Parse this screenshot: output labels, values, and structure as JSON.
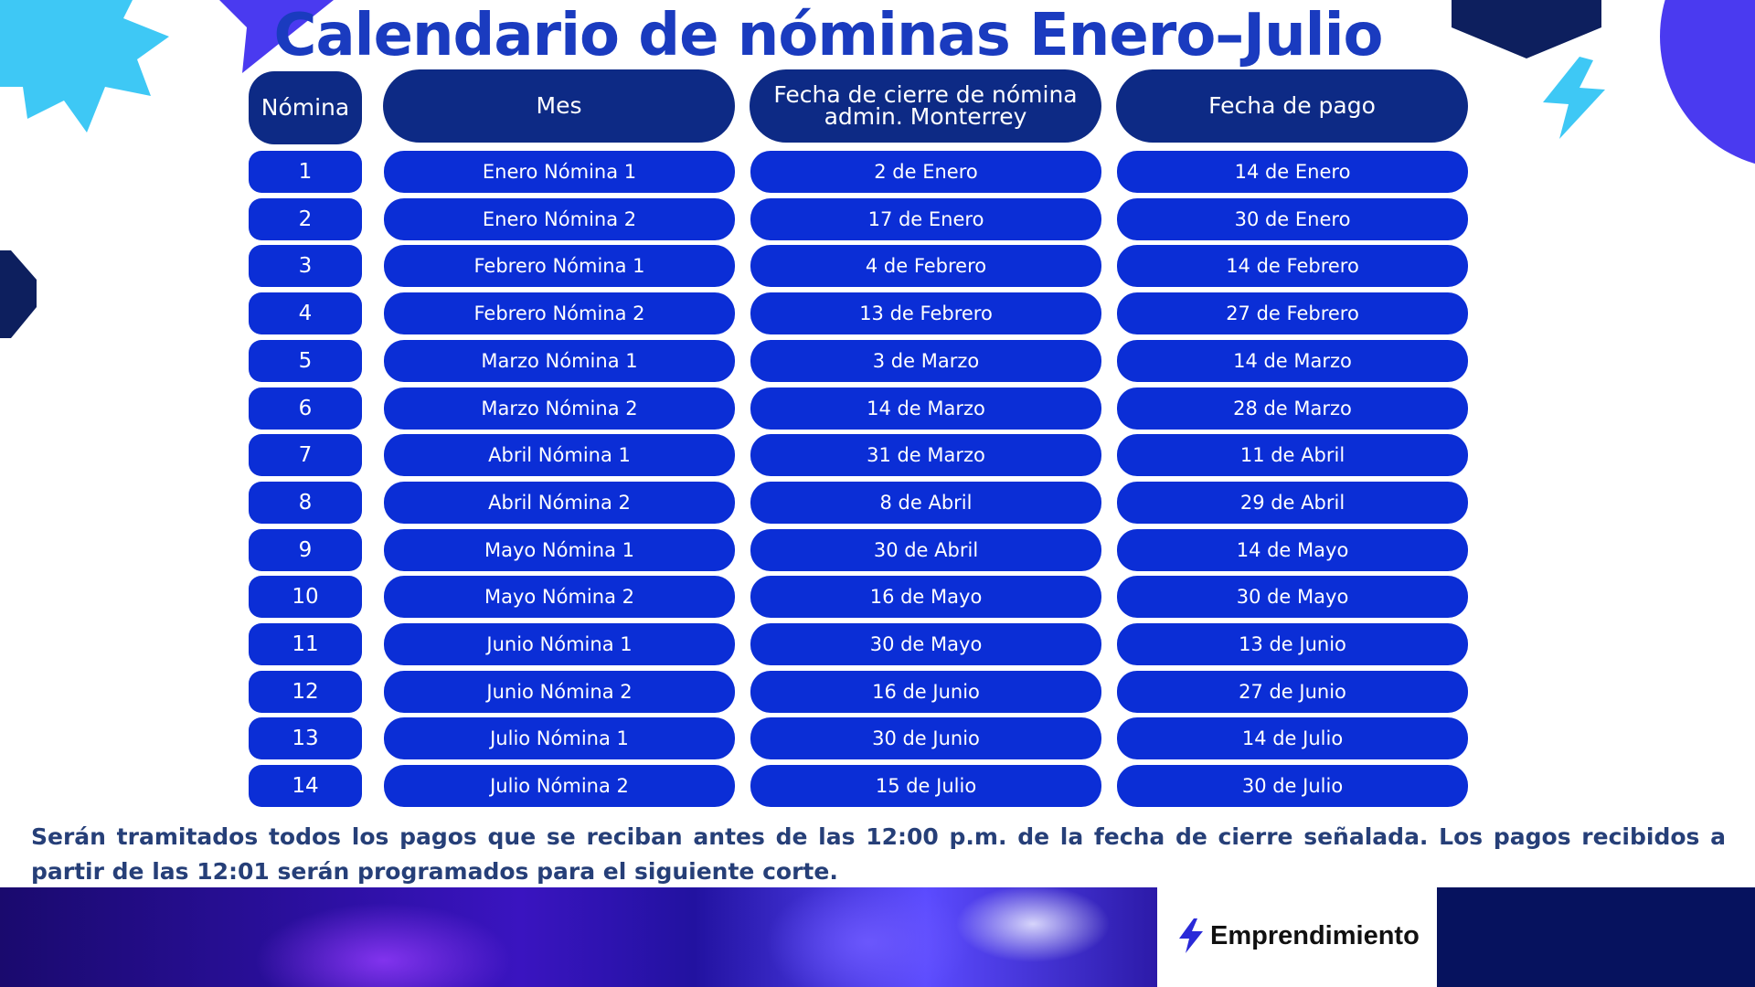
{
  "title": "Calendario de nóminas Enero–Julio",
  "headers": {
    "nomina": "Nómina",
    "mes": "Mes",
    "cierre": "Fecha de cierre de nómina\nadmin. Monterrey",
    "pago": "Fecha de pago"
  },
  "rows": [
    {
      "num": "1",
      "mes": "Enero Nómina 1",
      "cierre": "2 de Enero",
      "pago": "14 de Enero"
    },
    {
      "num": "2",
      "mes": "Enero Nómina 2",
      "cierre": "17 de Enero",
      "pago": "30 de Enero"
    },
    {
      "num": "3",
      "mes": "Febrero Nómina 1",
      "cierre": "4 de Febrero",
      "pago": "14 de Febrero"
    },
    {
      "num": "4",
      "mes": "Febrero  Nómina 2",
      "cierre": "13 de Febrero",
      "pago": "27 de Febrero"
    },
    {
      "num": "5",
      "mes": "Marzo Nómina 1",
      "cierre": "3 de Marzo",
      "pago": "14 de Marzo"
    },
    {
      "num": "6",
      "mes": "Marzo Nómina 2",
      "cierre": "14 de Marzo",
      "pago": "28 de Marzo"
    },
    {
      "num": "7",
      "mes": "Abril Nómina 1",
      "cierre": "31 de Marzo",
      "pago": "11 de Abril"
    },
    {
      "num": "8",
      "mes": "Abril Nómina 2",
      "cierre": "8 de Abril",
      "pago": "29 de Abril"
    },
    {
      "num": "9",
      "mes": "Mayo Nómina 1",
      "cierre": "30  de Abril",
      "pago": "14 de Mayo"
    },
    {
      "num": "10",
      "mes": "Mayo Nómina 2",
      "cierre": "16 de Mayo",
      "pago": "30 de Mayo"
    },
    {
      "num": "11",
      "mes": "Junio  Nómina 1",
      "cierre": "30 de Mayo",
      "pago": "13 de Junio"
    },
    {
      "num": "12",
      "mes": "Junio  Nómina 2",
      "cierre": "16 de Junio",
      "pago": "27 de Junio"
    },
    {
      "num": "13",
      "mes": "Julio  Nómina 1",
      "cierre": "30 de Junio",
      "pago": "14 de Julio"
    },
    {
      "num": "14",
      "mes": "Julio  Nómina 2",
      "cierre": "15 de Julio",
      "pago": "30 de Julio"
    }
  ],
  "note": "Serán tramitados todos los pagos que se reciban antes de las 12:00 p.m. de la fecha de cierre señalada. Los pagos recibidos a partir de las 12:01 serán programados para el siguiente corte.",
  "brand": {
    "name": "Emprendimiento",
    "icon": "lightning-bolt-icon"
  },
  "colors": {
    "title": "#1a3bbf",
    "header_bg": "#0d2a85",
    "cell_bg": "#0b2ed6",
    "note_text": "#263f78",
    "accent_cyan": "#3ec8f5",
    "accent_purple": "#4a3af0"
  }
}
